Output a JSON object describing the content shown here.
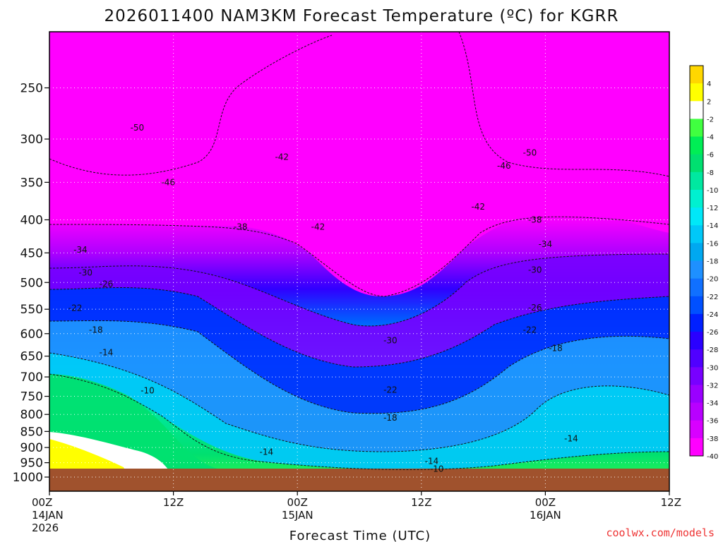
{
  "chart_data": {
    "type": "heatmap",
    "title": "2026011400 NAM3KM Forecast Temperature (ºC) for KGRR",
    "xlabel": "Forecast Time (UTC)",
    "ylabel": "",
    "x_range_hours": [
      0,
      60
    ],
    "y_levels_hpa": [
      250,
      300,
      350,
      400,
      450,
      500,
      550,
      600,
      650,
      700,
      750,
      800,
      850,
      900,
      950,
      1000
    ],
    "x_ticks": [
      {
        "hour": 0,
        "lines": [
          "00Z",
          "14JAN",
          "2026"
        ]
      },
      {
        "hour": 12,
        "lines": [
          "12Z"
        ]
      },
      {
        "hour": 24,
        "lines": [
          "00Z",
          "15JAN"
        ]
      },
      {
        "hour": 36,
        "lines": [
          "12Z"
        ]
      },
      {
        "hour": 48,
        "lines": [
          "00Z",
          "16JAN"
        ]
      },
      {
        "hour": 60,
        "lines": [
          "12Z"
        ]
      }
    ],
    "grid": true,
    "colorbar": {
      "placement": "right",
      "labels": [
        "4",
        "2",
        "-2",
        "-4",
        "-6",
        "-8",
        "-10",
        "-12",
        "-14",
        "-16",
        "-18",
        "-20",
        "-22",
        "-24",
        "-26",
        "-28",
        "-30",
        "-32",
        "-34",
        "-36",
        "-38",
        "-40"
      ],
      "colors": [
        "#ffd700",
        "#ffff00",
        "#ffffff",
        "#40ff40",
        "#00ee55",
        "#00e070",
        "#00e8a0",
        "#00f0d0",
        "#00e8f8",
        "#00c8f8",
        "#00a8f0",
        "#1e90ff",
        "#1070ff",
        "#0050ff",
        "#0020ff",
        "#2a00ff",
        "#5000ff",
        "#7800ff",
        "#9a00ff",
        "#b800ff",
        "#d800ff",
        "#ff00ff"
      ]
    },
    "contour_labels": [
      {
        "text": "-50",
        "hour": 8.5,
        "hpa": 288
      },
      {
        "text": "-46",
        "hour": 11.5,
        "hpa": 350
      },
      {
        "text": "-42",
        "hour": 22.5,
        "hpa": 320
      },
      {
        "text": "-38",
        "hour": 18.5,
        "hpa": 410
      },
      {
        "text": "-42",
        "hour": 26,
        "hpa": 410
      },
      {
        "text": "-34",
        "hour": 3,
        "hpa": 445
      },
      {
        "text": "-30",
        "hour": 3.5,
        "hpa": 483
      },
      {
        "text": "-26",
        "hour": 5.5,
        "hpa": 503
      },
      {
        "text": "-22",
        "hour": 2.5,
        "hpa": 548
      },
      {
        "text": "-18",
        "hour": 4.5,
        "hpa": 592
      },
      {
        "text": "-14",
        "hour": 5.5,
        "hpa": 642
      },
      {
        "text": "-10",
        "hour": 9.5,
        "hpa": 735
      },
      {
        "text": "-30",
        "hour": 33,
        "hpa": 615
      },
      {
        "text": "-22",
        "hour": 33,
        "hpa": 733
      },
      {
        "text": "-18",
        "hour": 33,
        "hpa": 810
      },
      {
        "text": "-14",
        "hour": 21,
        "hpa": 915
      },
      {
        "text": "-14",
        "hour": 37,
        "hpa": 945
      },
      {
        "text": "-10",
        "hour": 37.5,
        "hpa": 972
      },
      {
        "text": "-42",
        "hour": 41.5,
        "hpa": 382
      },
      {
        "text": "-38",
        "hour": 47,
        "hpa": 400
      },
      {
        "text": "-34",
        "hour": 48,
        "hpa": 436
      },
      {
        "text": "-30",
        "hour": 47,
        "hpa": 478
      },
      {
        "text": "-26",
        "hour": 47,
        "hpa": 547
      },
      {
        "text": "-22",
        "hour": 46.5,
        "hpa": 592
      },
      {
        "text": "-18",
        "hour": 49,
        "hpa": 632
      },
      {
        "text": "-14",
        "hour": 50.5,
        "hpa": 872
      },
      {
        "text": "-46",
        "hour": 44,
        "hpa": 330
      },
      {
        "text": "-50",
        "hour": 46.5,
        "hpa": 315
      }
    ]
  },
  "credit": "coolwx.com/models"
}
